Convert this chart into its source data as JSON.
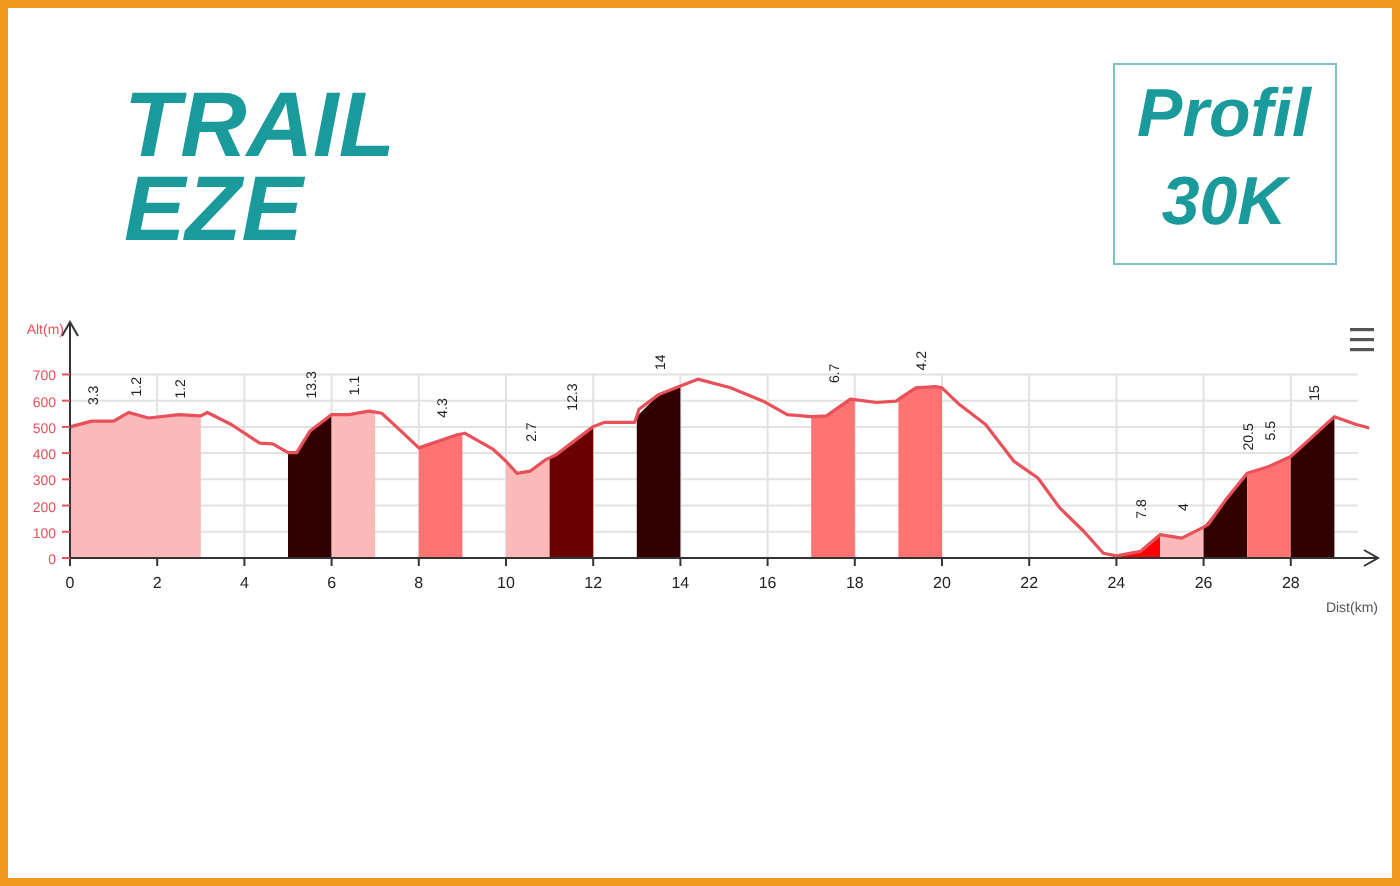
{
  "chart_data": {
    "type": "line",
    "title": "TRAIL EZE",
    "subtitle": "Profil 30K",
    "xlabel": "Dist(km)",
    "ylabel": "Alt(m)",
    "xlim": [
      0,
      30
    ],
    "ylim": [
      0,
      900
    ],
    "xticks": [
      0,
      2,
      4,
      6,
      8,
      10,
      12,
      14,
      16,
      18,
      20,
      22,
      24,
      26,
      28
    ],
    "yticks": [
      0,
      100,
      200,
      300,
      400,
      500,
      600,
      700
    ],
    "grid": true,
    "marker": "none",
    "line_style": "solid",
    "series": [
      {
        "type": "area",
        "color": "#fbb9b9",
        "x": [
          0,
          0.5,
          1,
          1.35,
          1.8,
          2.5,
          3
        ],
        "values": [
          500,
          522,
          522,
          555,
          534,
          547,
          542
        ]
      },
      {
        "type": "area",
        "color": "#330000",
        "x": [
          5,
          5.2,
          5.5,
          6
        ],
        "values": [
          402,
          402,
          483,
          547
        ]
      },
      {
        "type": "area",
        "color": "#fbb9b9",
        "x": [
          6,
          6.4,
          6.85,
          7
        ],
        "values": [
          547,
          547,
          560,
          556
        ]
      },
      {
        "type": "area",
        "color": "#ff7373",
        "x": [
          8,
          8.9,
          9
        ],
        "values": [
          420,
          471,
          474
        ]
      },
      {
        "type": "area",
        "color": "#fbb9b9",
        "x": [
          10,
          10.25,
          10.55,
          10.9,
          11
        ],
        "values": [
          369,
          323,
          331,
          374,
          382
        ]
      },
      {
        "type": "area",
        "color": "#6b0000",
        "x": [
          11,
          11.15,
          11.5,
          12
        ],
        "values": [
          382,
          394,
          438,
          501
        ]
      },
      {
        "type": "area",
        "color": "#330000",
        "x": [
          13,
          13.5,
          14
        ],
        "values": [
          540,
          623,
          656
        ]
      },
      {
        "type": "area",
        "color": "#ff7373",
        "x": [
          17,
          17.35,
          17.9,
          18
        ],
        "values": [
          539,
          542,
          606,
          604
        ]
      },
      {
        "type": "area",
        "color": "#ff7373",
        "x": [
          19,
          19.4,
          19.85,
          20
        ],
        "values": [
          605,
          649,
          654,
          649
        ]
      },
      {
        "type": "area",
        "color": "#ff0000",
        "x": [
          24,
          24.55,
          25
        ],
        "values": [
          8,
          25,
          89
        ]
      },
      {
        "type": "area",
        "color": "#fbb9b9",
        "x": [
          25,
          25.5,
          26
        ],
        "values": [
          89,
          76,
          118
        ]
      },
      {
        "type": "area",
        "color": "#330000",
        "x": [
          26,
          26.5,
          27
        ],
        "values": [
          118,
          220,
          323
        ]
      },
      {
        "type": "area",
        "color": "#ff7373",
        "x": [
          27,
          27.5,
          28
        ],
        "values": [
          323,
          349,
          387
        ]
      },
      {
        "type": "area",
        "color": "#330000",
        "x": [
          28,
          28.5,
          29
        ],
        "values": [
          387,
          463,
          539
        ]
      },
      {
        "color": "#e8505a",
        "x": [
          0,
          0.5,
          1,
          1.35,
          1.8,
          2.5,
          3,
          3.15,
          3.7,
          4.35,
          4.65,
          5,
          5.2,
          5.5,
          6,
          6.4,
          6.85,
          7,
          7.15,
          7.6,
          8,
          8.9,
          9,
          9.05,
          9.7,
          10,
          10.25,
          10.55,
          10.9,
          11,
          11.15,
          11.5,
          12,
          12.25,
          12.95,
          13,
          13.05,
          13.5,
          14,
          14.4,
          15.15,
          15.9,
          16.45,
          17,
          17.35,
          17.9,
          18,
          18.5,
          18.95,
          19,
          19.4,
          19.85,
          20,
          20.4,
          21,
          21.65,
          22.2,
          22.7,
          23.25,
          23.7,
          24,
          24.55,
          25,
          25.5,
          26,
          26.1,
          26.5,
          27,
          27.5,
          28,
          28.5,
          29,
          29.5,
          29.8
        ],
        "values": [
          500,
          522,
          522,
          555,
          534,
          547,
          542,
          555,
          509,
          438,
          435,
          402,
          402,
          483,
          547,
          547,
          560,
          556,
          552,
          483,
          420,
          471,
          474,
          476,
          415,
          369,
          323,
          331,
          374,
          382,
          394,
          438,
          501,
          517,
          517,
          540,
          567,
          623,
          656,
          682,
          649,
          598,
          547,
          539,
          542,
          606,
          604,
          593,
          598,
          605,
          649,
          654,
          649,
          585,
          509,
          369,
          305,
          191,
          102,
          18,
          8,
          25,
          89,
          76,
          118,
          127,
          220,
          323,
          349,
          387,
          463,
          539,
          509,
          496
        ]
      }
    ],
    "annotations": [
      {
        "text": "3.3",
        "x": 0.5,
        "y": 522
      },
      {
        "text": "1.2",
        "x": 1.5,
        "y": 555
      },
      {
        "text": "1.2",
        "x": 2.5,
        "y": 547
      },
      {
        "text": "13.3",
        "x": 5.5,
        "y": 483
      },
      {
        "text": "1.1",
        "x": 6.5,
        "y": 560
      },
      {
        "text": "4.3",
        "x": 8.5,
        "y": 474
      },
      {
        "text": "2.7",
        "x": 10.55,
        "y": 331
      },
      {
        "text": "12.3",
        "x": 11.5,
        "y": 438
      },
      {
        "text": "14",
        "x": 13.5,
        "y": 656
      },
      {
        "text": "6.7",
        "x": 17.5,
        "y": 606
      },
      {
        "text": "4.2",
        "x": 19.5,
        "y": 654
      },
      {
        "text": "7.8",
        "x": 24.55,
        "y": 25
      },
      {
        "text": "4",
        "x": 25.5,
        "y": 118
      },
      {
        "text": "20.5",
        "x": 27,
        "y": 323
      },
      {
        "text": "5.5",
        "x": 27.5,
        "y": 349
      },
      {
        "text": "15",
        "x": 28.5,
        "y": 463
      }
    ]
  }
}
